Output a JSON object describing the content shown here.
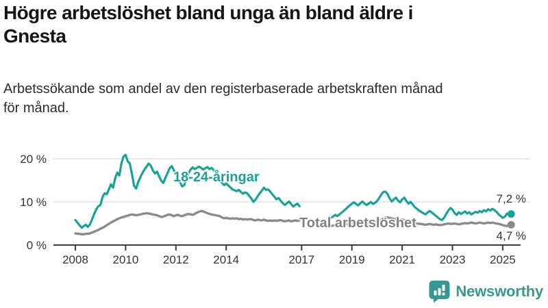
{
  "header": {
    "title": "Högre arbetslöshet bland unga än bland äldre i Gnesta",
    "title_lines": [
      "Högre arbetslöshet bland unga än bland äldre i",
      "Gnesta"
    ],
    "subtitle": "Arbetssökande som andel av den registerbaserade arbetskraften månad för månad.",
    "subtitle_lines": [
      "Arbetssökande som andel av den registerbaserade arbetskraften månad",
      "för månad."
    ]
  },
  "footer": {
    "brand": "Newsworthy"
  },
  "colors": {
    "young_line": "#16a296",
    "total_line": "#8a8a8a",
    "total_label": "#808080",
    "grid": "#e0e0e0",
    "axis": "#3c3c3c",
    "text_dark": "#333333",
    "logo_teal": "#36998f"
  },
  "chart_data": {
    "type": "line",
    "title": "Högre arbetslöshet bland unga än bland äldre i Gnesta",
    "subtitle": "Arbetssökande som andel av den registerbaserade arbetskraften månad för månad.",
    "x_unit": "decimal_year_monthly",
    "xlim": [
      2007.9,
      2025.6
    ],
    "ylim": [
      0,
      22
    ],
    "grid": "horizontal",
    "legend_position": "inline-labels",
    "x_axis": {
      "ticks": [
        2008,
        2010,
        2012,
        2014,
        2017,
        2019,
        2021,
        2023,
        2025
      ]
    },
    "y_axis": {
      "ticks": [
        {
          "value": 0,
          "label": "0 %"
        },
        {
          "value": 10,
          "label": "10 %"
        },
        {
          "value": 20,
          "label": "20 %"
        }
      ]
    },
    "series": [
      {
        "name": "18-24-åringar",
        "color": "#16a296",
        "end_label": "7,2 %",
        "end_value": 7.2,
        "segments": [
          {
            "start_year": 2008.0,
            "values": [
              5.8,
              5.2,
              4.6,
              4.0,
              4.4,
              4.7,
              4.2,
              4.8,
              6.0,
              7.2,
              8.3,
              9.0,
              9.3,
              11.2,
              12.0,
              11.8,
              12.9,
              14.1,
              13.3,
              15.5,
              16.8,
              16.1,
              19.0,
              20.5,
              20.9,
              19.4,
              18.9,
              16.5,
              13.8,
              13.1,
              14.6,
              15.7,
              16.7,
              17.5,
              18.2,
              18.9,
              18.4,
              17.3,
              16.6,
              17.0,
              15.9,
              14.9,
              14.4,
              15.6,
              16.7,
              17.8,
              18.3,
              17.4,
              16.4,
              15.5,
              14.5,
              13.6,
              13.9,
              15.3,
              16.6,
              17.5,
              18.0,
              17.6,
              17.9,
              18.2,
              17.9,
              17.5,
              17.8,
              18.1,
              17.6,
              17.9,
              17.4,
              16.8,
              16.0,
              15.2,
              14.4,
              13.9,
              14.3,
              13.8,
              13.4,
              12.9,
              12.7,
              12.5,
              12.8,
              12.3,
              11.9,
              12.2,
              12.0,
              11.4,
              10.8,
              10.0,
              10.5,
              11.3,
              12.0,
              12.6,
              13.3,
              12.8,
              12.9,
              12.4,
              11.8,
              11.2,
              10.6,
              10.9,
              10.3,
              9.7,
              9.3,
              9.7,
              10.1,
              9.5,
              8.9,
              9.3,
              9.6,
              9.0
            ]
          },
          {
            "start_year": 2018.17,
            "values": [
              6.3,
              6.6,
              7.0,
              6.7,
              7.1,
              7.5,
              7.9,
              8.3,
              8.8,
              9.2,
              9.6,
              9.9,
              9.5,
              9.2,
              9.7,
              10.1,
              9.6,
              9.3,
              9.6,
              10.0,
              9.5,
              9.8,
              10.2,
              10.9,
              11.7,
              12.3,
              12.4,
              11.8,
              10.8,
              10.1,
              10.6,
              11.0,
              10.3,
              9.9,
              10.6,
              11.0,
              10.2,
              9.6,
              10.0,
              9.4,
              8.8,
              8.4,
              8.0,
              7.7,
              7.4,
              7.1,
              7.5,
              7.9,
              7.6,
              7.2,
              6.8,
              6.4,
              6.0,
              5.8,
              6.4,
              7.2,
              8.0,
              8.6,
              8.2,
              7.4,
              7.0,
              7.6,
              7.2,
              7.5,
              7.8,
              7.3,
              7.6,
              7.1,
              7.4,
              7.7,
              7.5,
              7.9,
              7.6,
              8.1,
              7.8,
              8.3,
              8.0,
              8.4,
              8.1,
              7.7,
              7.1,
              6.7,
              6.3,
              6.6,
              7.3,
              7.0,
              7.2
            ]
          }
        ]
      },
      {
        "name": "Total arbetslöshet",
        "color": "#8a8a8a",
        "end_label": "4,7 %",
        "end_value": 4.7,
        "segments": [
          {
            "start_year": 2008.0,
            "values": [
              2.7,
              2.6,
              2.6,
              2.5,
              2.5,
              2.6,
              2.6,
              2.7,
              2.9,
              3.1,
              3.3,
              3.5,
              3.8,
              4.0,
              4.3,
              4.6,
              4.9,
              5.2,
              5.5,
              5.7,
              6.0,
              6.2,
              6.4,
              6.5,
              6.7,
              6.8,
              7.0,
              7.1,
              7.0,
              6.9,
              7.0,
              7.1,
              7.2,
              7.3,
              7.4,
              7.3,
              7.2,
              7.1,
              7.0,
              6.9,
              6.7,
              6.5,
              6.6,
              6.8,
              7.0,
              7.1,
              6.9,
              6.7,
              6.9,
              7.0,
              6.8,
              6.7,
              6.9,
              7.1,
              7.2,
              7.1,
              7.0,
              7.2,
              7.5,
              7.7,
              7.9,
              7.8,
              7.6,
              7.4,
              7.2,
              7.1,
              7.0,
              6.9,
              6.8,
              6.7,
              6.4,
              6.2,
              6.3,
              6.2,
              6.1,
              6.2,
              6.1,
              6.2,
              6.0,
              6.1,
              5.9,
              6.0,
              5.9,
              6.0,
              6.0,
              5.8,
              5.7,
              5.9,
              5.8,
              5.7,
              5.9,
              5.7,
              5.6,
              5.7,
              5.6,
              5.7,
              5.6,
              5.7,
              5.8,
              5.6,
              5.5,
              5.6,
              5.7,
              5.5,
              5.6,
              5.7,
              5.6,
              5.7
            ]
          },
          {
            "start_year": 2018.17,
            "values": [
              4.4,
              4.5,
              4.6,
              4.6,
              4.7,
              4.7,
              4.8,
              4.8,
              4.9,
              4.9,
              5.0,
              5.0,
              5.1,
              5.0,
              5.1,
              5.1,
              5.2,
              5.1,
              5.1,
              5.2,
              5.2,
              5.3,
              5.4,
              5.6,
              5.9,
              6.2,
              6.4,
              6.4,
              6.3,
              6.2,
              6.1,
              6.0,
              5.9,
              5.8,
              5.9,
              5.8,
              5.6,
              5.4,
              5.3,
              5.2,
              5.1,
              5.0,
              4.9,
              4.9,
              4.8,
              4.7,
              4.8,
              4.9,
              4.8,
              4.7,
              4.8,
              4.7,
              4.6,
              4.7,
              4.8,
              4.9,
              5.0,
              4.9,
              4.9,
              5.0,
              4.9,
              4.8,
              4.9,
              5.0,
              5.1,
              5.0,
              5.1,
              5.2,
              5.1,
              5.0,
              5.1,
              5.2,
              5.1,
              5.0,
              5.1,
              5.2,
              5.1,
              5.2,
              5.1,
              5.0,
              4.9,
              4.8,
              4.6,
              4.5,
              4.4,
              4.6,
              4.7
            ]
          }
        ]
      }
    ]
  }
}
